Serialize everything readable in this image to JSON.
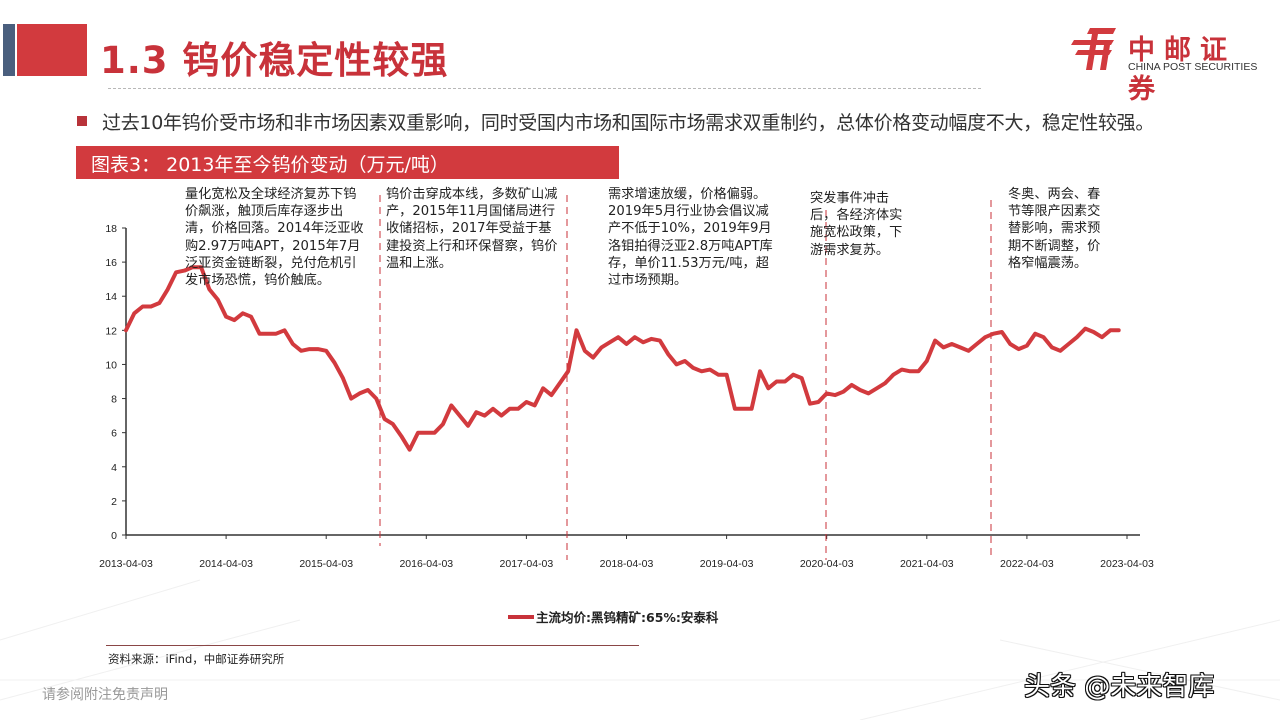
{
  "header": {
    "title": "1.3 钨价稳定性较强",
    "brand_cn": "中邮证券",
    "brand_en": "CHINA POST SECURITIES",
    "accent_red": "#d23a3e",
    "accent_blue": "#4a5f7e"
  },
  "bullet": {
    "text": "过去10年钨价受市场和非市场因素双重影响，同时受国内市场和国际市场需求双重制约，总体价格变动幅度不大，稳定性较强。"
  },
  "figure": {
    "title": "图表3：  2013年至今钨价变动（万元/吨）"
  },
  "annotations": [
    {
      "text": "量化宽松及全球经济复苏下钨价飙涨，触顶后库存逐步出清，价格回落。2014年泛亚收购2.97万吨APT，2015年7月泛亚资金链断裂，兑付危机引发市场恐慌，钨价触底。"
    },
    {
      "text": "钨价击穿成本线，多数矿山减产，2015年11月国储局进行收储招标，2017年受益于基建投资上行和环保督察，钨价温和上涨。"
    },
    {
      "text": "需求增速放缓，价格偏弱。2019年5月行业协会倡议减产不低于10%，2019年9月洛钼拍得泛亚2.8万吨APT库存，单价11.53万元/吨，超过市场预期。"
    },
    {
      "text": "突发事件冲击后，各经济体实施宽松政策，下游需求复苏。"
    },
    {
      "text": "冬奥、两会、春节等限产因素交替影响，需求预期不断调整，价格窄幅震荡。"
    }
  ],
  "chart_data": {
    "type": "line",
    "title": "2013年至今钨价变动（万元/吨）",
    "xlabel": "",
    "ylabel": "万元/吨",
    "ylim": [
      0,
      18
    ],
    "yticks": [
      0,
      2,
      4,
      6,
      8,
      10,
      12,
      14,
      16,
      18
    ],
    "xticks": [
      "2013-04-03",
      "2014-04-03",
      "2015-04-03",
      "2016-04-03",
      "2017-04-03",
      "2018-04-03",
      "2019-04-03",
      "2020-04-03",
      "2021-04-03",
      "2022-04-03",
      "2023-04-03"
    ],
    "grid": false,
    "legend_position": "bottom",
    "divider_dates": [
      "2015-11",
      "2017-08",
      "2020-03",
      "2021-10"
    ],
    "series": [
      {
        "name": "主流均价:黑钨精矿:65%:安泰科",
        "color": "#d23a3e",
        "points": [
          [
            "2013-04",
            12.0
          ],
          [
            "2013-05",
            13.0
          ],
          [
            "2013-06",
            13.4
          ],
          [
            "2013-07",
            13.4
          ],
          [
            "2013-08",
            13.6
          ],
          [
            "2013-09",
            14.4
          ],
          [
            "2013-10",
            15.4
          ],
          [
            "2013-11",
            15.5
          ],
          [
            "2013-12",
            15.7
          ],
          [
            "2014-01",
            15.7
          ],
          [
            "2014-02",
            14.4
          ],
          [
            "2014-03",
            13.8
          ],
          [
            "2014-04",
            12.8
          ],
          [
            "2014-05",
            12.6
          ],
          [
            "2014-06",
            13.0
          ],
          [
            "2014-07",
            12.8
          ],
          [
            "2014-08",
            11.8
          ],
          [
            "2014-09",
            11.8
          ],
          [
            "2014-10",
            11.8
          ],
          [
            "2014-11",
            12.0
          ],
          [
            "2014-12",
            11.2
          ],
          [
            "2015-01",
            10.8
          ],
          [
            "2015-02",
            10.9
          ],
          [
            "2015-03",
            10.9
          ],
          [
            "2015-04",
            10.8
          ],
          [
            "2015-05",
            10.1
          ],
          [
            "2015-06",
            9.2
          ],
          [
            "2015-07",
            8.0
          ],
          [
            "2015-08",
            8.3
          ],
          [
            "2015-09",
            8.5
          ],
          [
            "2015-10",
            8.0
          ],
          [
            "2015-11",
            6.8
          ],
          [
            "2015-12",
            6.5
          ],
          [
            "2016-01",
            5.8
          ],
          [
            "2016-02",
            5.0
          ],
          [
            "2016-03",
            6.0
          ],
          [
            "2016-04",
            6.0
          ],
          [
            "2016-05",
            6.0
          ],
          [
            "2016-06",
            6.5
          ],
          [
            "2016-07",
            7.6
          ],
          [
            "2016-08",
            7.0
          ],
          [
            "2016-09",
            6.4
          ],
          [
            "2016-10",
            7.2
          ],
          [
            "2016-11",
            7.0
          ],
          [
            "2016-12",
            7.4
          ],
          [
            "2017-01",
            7.0
          ],
          [
            "2017-02",
            7.4
          ],
          [
            "2017-03",
            7.4
          ],
          [
            "2017-04",
            7.8
          ],
          [
            "2017-05",
            7.6
          ],
          [
            "2017-06",
            8.6
          ],
          [
            "2017-07",
            8.2
          ],
          [
            "2017-08",
            8.9
          ],
          [
            "2017-09",
            9.6
          ],
          [
            "2017-10",
            12.0
          ],
          [
            "2017-11",
            10.8
          ],
          [
            "2017-12",
            10.4
          ],
          [
            "2018-01",
            11.0
          ],
          [
            "2018-02",
            11.3
          ],
          [
            "2018-03",
            11.6
          ],
          [
            "2018-04",
            11.2
          ],
          [
            "2018-05",
            11.6
          ],
          [
            "2018-06",
            11.3
          ],
          [
            "2018-07",
            11.5
          ],
          [
            "2018-08",
            11.4
          ],
          [
            "2018-09",
            10.6
          ],
          [
            "2018-10",
            10.0
          ],
          [
            "2018-11",
            10.2
          ],
          [
            "2018-12",
            9.8
          ],
          [
            "2019-01",
            9.6
          ],
          [
            "2019-02",
            9.7
          ],
          [
            "2019-03",
            9.4
          ],
          [
            "2019-04",
            9.4
          ],
          [
            "2019-05",
            7.4
          ],
          [
            "2019-06",
            7.4
          ],
          [
            "2019-07",
            7.4
          ],
          [
            "2019-08",
            9.6
          ],
          [
            "2019-09",
            8.6
          ],
          [
            "2019-10",
            9.0
          ],
          [
            "2019-11",
            9.0
          ],
          [
            "2019-12",
            9.4
          ],
          [
            "2020-01",
            9.2
          ],
          [
            "2020-02",
            7.7
          ],
          [
            "2020-03",
            7.8
          ],
          [
            "2020-04",
            8.3
          ],
          [
            "2020-05",
            8.2
          ],
          [
            "2020-06",
            8.4
          ],
          [
            "2020-07",
            8.8
          ],
          [
            "2020-08",
            8.5
          ],
          [
            "2020-09",
            8.3
          ],
          [
            "2020-10",
            8.6
          ],
          [
            "2020-11",
            8.9
          ],
          [
            "2020-12",
            9.4
          ],
          [
            "2021-01",
            9.7
          ],
          [
            "2021-02",
            9.6
          ],
          [
            "2021-03",
            9.6
          ],
          [
            "2021-04",
            10.2
          ],
          [
            "2021-05",
            11.4
          ],
          [
            "2021-06",
            11.0
          ],
          [
            "2021-07",
            11.2
          ],
          [
            "2021-08",
            11.0
          ],
          [
            "2021-09",
            10.8
          ],
          [
            "2021-10",
            11.2
          ],
          [
            "2021-11",
            11.6
          ],
          [
            "2021-12",
            11.8
          ],
          [
            "2022-01",
            11.9
          ],
          [
            "2022-02",
            11.2
          ],
          [
            "2022-03",
            10.9
          ],
          [
            "2022-04",
            11.1
          ],
          [
            "2022-05",
            11.8
          ],
          [
            "2022-06",
            11.6
          ],
          [
            "2022-07",
            11.0
          ],
          [
            "2022-08",
            10.8
          ],
          [
            "2022-09",
            11.2
          ],
          [
            "2022-10",
            11.6
          ],
          [
            "2022-11",
            12.1
          ],
          [
            "2022-12",
            11.9
          ],
          [
            "2023-01",
            11.6
          ],
          [
            "2023-02",
            12.0
          ],
          [
            "2023-03",
            12.0
          ]
        ]
      }
    ]
  },
  "legend": {
    "label": "主流均价:黑钨精矿:65%:安泰科"
  },
  "footer": {
    "source": "资料来源：iFind，中邮证券研究所",
    "disclaimer": "请参阅附注免责声明",
    "watermark": "头条 @未来智库"
  }
}
